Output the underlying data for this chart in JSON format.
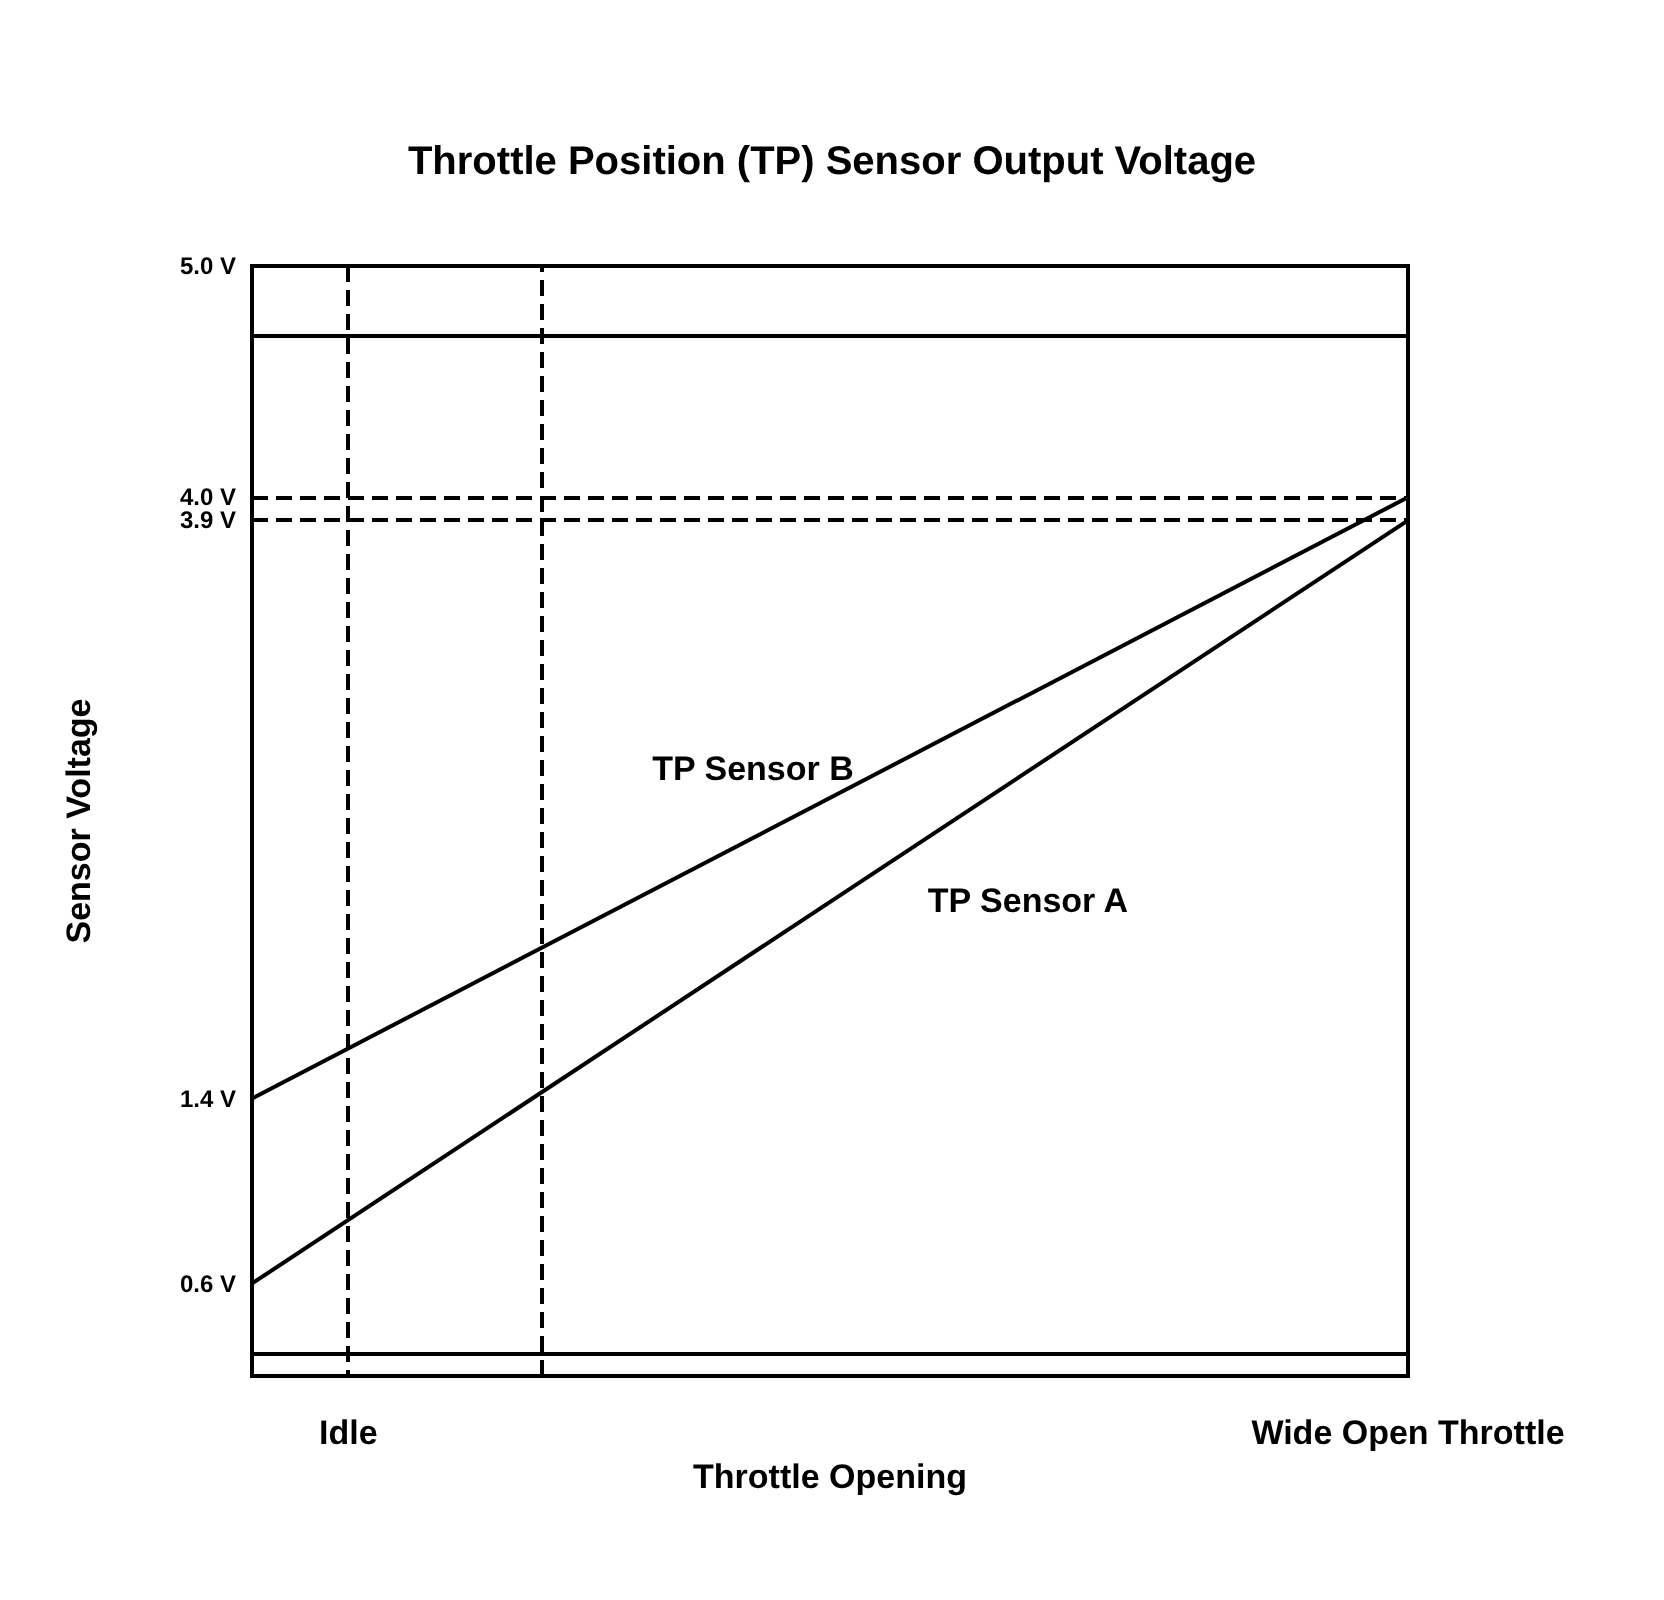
{
  "chart_data": {
    "type": "line",
    "title": "Throttle Position (TP) Sensor Output Voltage",
    "xlabel": "Throttle Opening",
    "ylabel": "Sensor Voltage",
    "categories": [
      null,
      "Idle",
      null,
      null,
      null,
      null,
      null,
      null,
      null,
      null,
      null,
      null,
      "Wide Open Throttle"
    ],
    "series": [
      {
        "name": "TP Sensor B",
        "color": "#000000",
        "values": [
          1.4,
          null,
          null,
          null,
          null,
          null,
          null,
          null,
          null,
          null,
          null,
          null,
          4.0
        ]
      },
      {
        "name": "TP Sensor A",
        "color": "#000000",
        "values": [
          0.6,
          null,
          null,
          null,
          null,
          null,
          null,
          null,
          null,
          null,
          null,
          null,
          3.9
        ]
      }
    ],
    "ylim": [
      0.2,
      5.0
    ],
    "yticks": [
      {
        "value": 0.6,
        "label": "0.6 V"
      },
      {
        "value": 1.4,
        "label": "1.4 V"
      },
      {
        "value": 3.9,
        "label": "3.9 V"
      },
      {
        "value": 4.0,
        "label": "4.0 V"
      },
      {
        "value": 5.0,
        "label": "5.0 V"
      }
    ],
    "ref_lines": [
      {
        "axis": "y",
        "value": 4.0,
        "color": "#000000",
        "line_style": "dashed"
      },
      {
        "axis": "y",
        "value": 3.9,
        "color": "#000000",
        "line_style": "dashed"
      },
      {
        "axis": "y",
        "value": 4.7,
        "color": "#000000",
        "line_style": "solid"
      },
      {
        "axis": "y",
        "value": 0.3,
        "color": "#000000",
        "line_style": "solid"
      }
    ],
    "grid": "x",
    "legend": false,
    "marker": "none",
    "line_style": "solid"
  }
}
